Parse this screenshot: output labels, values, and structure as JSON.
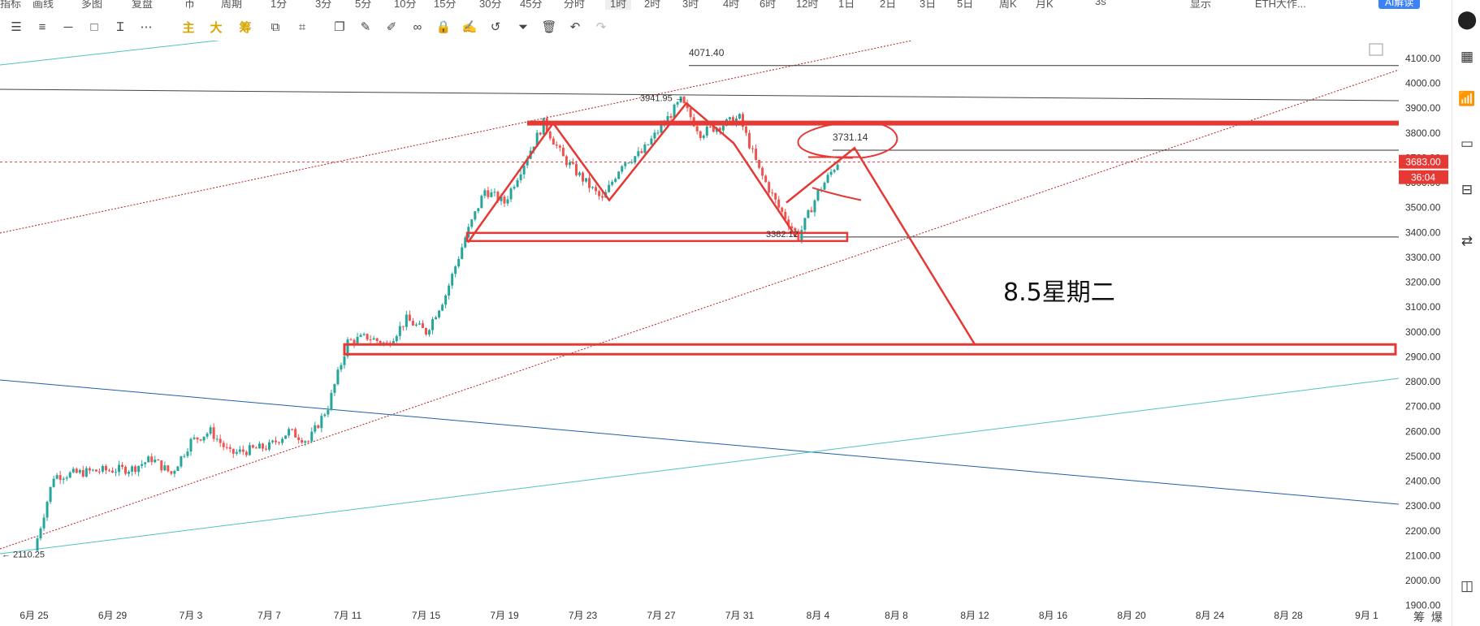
{
  "topbar": {
    "items": [
      "指标",
      "画线",
      "多图",
      "复盘",
      "币",
      "周期",
      "1分",
      "3分",
      "5分",
      "10分",
      "15分",
      "30分",
      "45分",
      "分时",
      "1时",
      "2时",
      "3时",
      "4时",
      "6时",
      "12时",
      "1日",
      "2日",
      "3日",
      "5日",
      "周K",
      "月K",
      "3s",
      "显示",
      "ETH大作..."
    ],
    "active": "1时",
    "ai_label": "AI解读"
  },
  "toolbar": {
    "gold_labels": [
      "主",
      "大",
      "筹"
    ],
    "icons": [
      "menu-icon",
      "list-icon",
      "line-icon",
      "rectangle-icon",
      "text-tool-icon",
      "more-icon",
      "layers-icon",
      "ruler-icon",
      "copy-icon",
      "pencil-icon",
      "brush-icon",
      "link-icon",
      "lock-icon",
      "edit-icon",
      "magnet-icon",
      "filter-icon",
      "trash-icon",
      "undo-icon",
      "redo-icon"
    ]
  },
  "chart_data": {
    "type": "candlestick",
    "symbol": "ETH",
    "interval": "1h",
    "y_range": [
      1900,
      4150
    ],
    "y_ticks": [
      "4100.00",
      "4000.00",
      "3900.00",
      "3800.00",
      "3700.00",
      "3600.00",
      "3500.00",
      "3400.00",
      "3300.00",
      "3200.00",
      "3100.00",
      "3000.00",
      "2900.00",
      "2800.00",
      "2700.00",
      "2600.00",
      "2500.00",
      "2400.00",
      "2300.00",
      "2200.00",
      "2100.00",
      "2000.00",
      "1900.00"
    ],
    "x_ticks": [
      "6月 25",
      "6月 29",
      "7月 3",
      "7月 7",
      "7月 11",
      "7月 15",
      "7月 19",
      "7月 23",
      "7月 27",
      "7月 31",
      "8月 4",
      "8月 8",
      "8月 12",
      "8月 16",
      "8月 20",
      "8月 24",
      "8月 28",
      "9月 1"
    ],
    "price_path": [
      {
        "date": "6月 25",
        "price": 2120
      },
      {
        "date": "6月 26",
        "price": 2420
      },
      {
        "date": "6月 28",
        "price": 2440
      },
      {
        "date": "6月 30",
        "price": 2450
      },
      {
        "date": "7月 1",
        "price": 2490
      },
      {
        "date": "7月 2",
        "price": 2430
      },
      {
        "date": "7月 3",
        "price": 2560
      },
      {
        "date": "7月 4",
        "price": 2600
      },
      {
        "date": "7月 5",
        "price": 2510
      },
      {
        "date": "7月 7",
        "price": 2540
      },
      {
        "date": "7月 8",
        "price": 2600
      },
      {
        "date": "7月 9",
        "price": 2560
      },
      {
        "date": "7月 10",
        "price": 2700
      },
      {
        "date": "7月 11",
        "price": 2960
      },
      {
        "date": "7月 12",
        "price": 2980
      },
      {
        "date": "7月 13",
        "price": 2950
      },
      {
        "date": "7月 14",
        "price": 3050
      },
      {
        "date": "7月 15",
        "price": 3000
      },
      {
        "date": "7月 16",
        "price": 3150
      },
      {
        "date": "7月 17",
        "price": 3380
      },
      {
        "date": "7月 18",
        "price": 3570
      },
      {
        "date": "7月 19",
        "price": 3520
      },
      {
        "date": "7月 21",
        "price": 3840
      },
      {
        "date": "7月 22",
        "price": 3700
      },
      {
        "date": "7月 24",
        "price": 3530
      },
      {
        "date": "7月 25",
        "price": 3680
      },
      {
        "date": "7月 26",
        "price": 3720
      },
      {
        "date": "7月 28",
        "price": 3930
      },
      {
        "date": "7月 29",
        "price": 3800
      },
      {
        "date": "7月 31",
        "price": 3860
      },
      {
        "date": "8月 1",
        "price": 3650
      },
      {
        "date": "8月 2",
        "price": 3500
      },
      {
        "date": "8月 3",
        "price": 3382
      },
      {
        "date": "8月 4",
        "price": 3560
      },
      {
        "date": "8月 5",
        "price": 3683
      }
    ],
    "labels": {
      "high_top": "4071.40",
      "high_label": "3941.95",
      "mid_label": "3731.14",
      "low_label": "3382.12",
      "start_label": "2110.25",
      "annotation": "8.5星期二"
    },
    "levels": {
      "high_top": 4071.4,
      "high": 3941.95,
      "mid": 3731.14,
      "low": 3382.12,
      "start": 2110.25,
      "current": 3683
    },
    "current_price_tag": "3683.00",
    "countdown_tag": "36:04",
    "colors": {
      "up": "#26a69a",
      "down": "#ef5350",
      "annotation": "#e53935",
      "trend_teal": "#4fc3c0",
      "trend_blue": "#1e5fa8",
      "trend_dotted": "#b71c1c",
      "text": "#333333"
    }
  },
  "rightbar": {
    "icons": [
      "collapse-icon",
      "grid-icon",
      "indicator-icon",
      "monitor-icon",
      "data-icon",
      "compare-icon",
      "window-icon"
    ]
  },
  "corner": {
    "items": [
      "筹",
      "爆"
    ]
  }
}
